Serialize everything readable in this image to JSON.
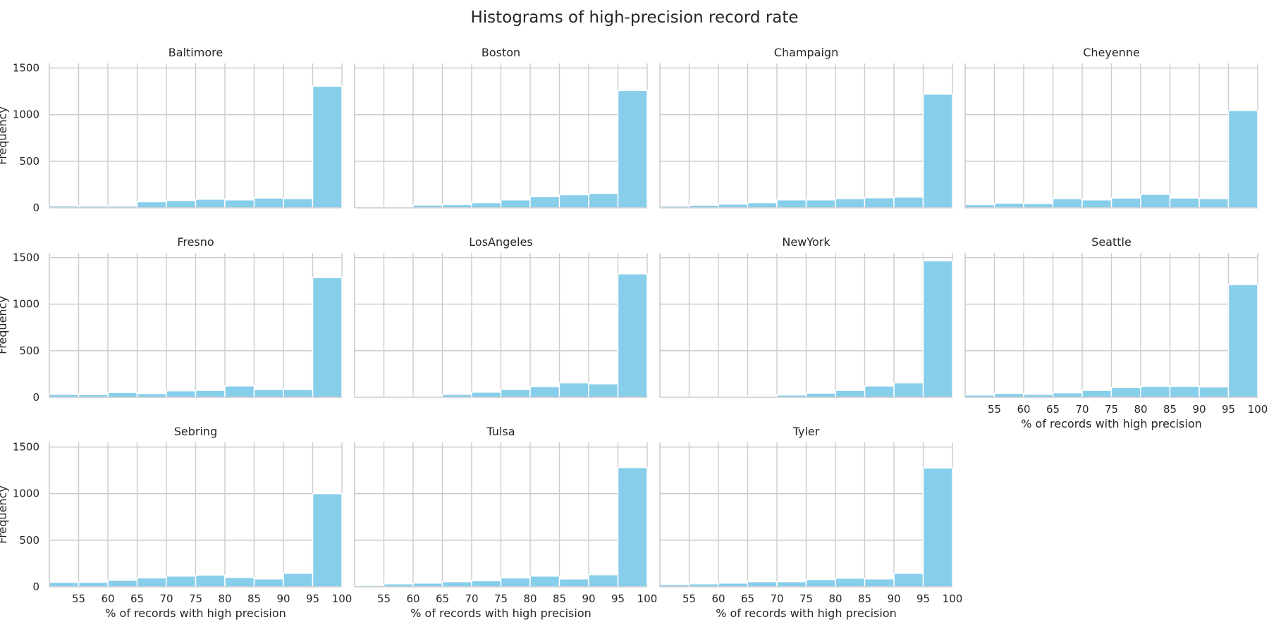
{
  "chart_data": {
    "type": "bar",
    "title": "Histograms of high-precision record rate",
    "xlabel": "% of records with high precision",
    "ylabel": "Frequency",
    "xlim": [
      50,
      100
    ],
    "ylim": [
      0,
      1550
    ],
    "x_ticks": [
      55,
      60,
      65,
      70,
      75,
      80,
      85,
      90,
      95,
      100
    ],
    "y_ticks": [
      0,
      500,
      1000,
      1500
    ],
    "bin_edges": [
      50,
      55,
      60,
      65,
      70,
      75,
      80,
      85,
      90,
      95,
      100
    ],
    "bar_color": "#87ceeb",
    "grid": true,
    "panels": [
      {
        "name": "Baltimore",
        "values": [
          20,
          18,
          18,
          65,
          78,
          92,
          85,
          105,
          98,
          1305
        ]
      },
      {
        "name": "Boston",
        "values": [
          5,
          8,
          30,
          35,
          55,
          85,
          120,
          140,
          155,
          1260
        ]
      },
      {
        "name": "Champaign",
        "values": [
          18,
          28,
          40,
          55,
          85,
          85,
          98,
          108,
          115,
          1220
        ]
      },
      {
        "name": "Cheyenne",
        "values": [
          35,
          50,
          45,
          98,
          85,
          105,
          145,
          105,
          98,
          1045
        ]
      },
      {
        "name": "Fresno",
        "values": [
          32,
          30,
          52,
          40,
          70,
          75,
          122,
          85,
          85,
          1285
        ]
      },
      {
        "name": "LosAngeles",
        "values": [
          3,
          3,
          5,
          32,
          55,
          85,
          115,
          155,
          145,
          1325
        ]
      },
      {
        "name": "NewYork",
        "values": [
          3,
          3,
          5,
          12,
          25,
          45,
          75,
          122,
          155,
          1465
        ]
      },
      {
        "name": "Seattle",
        "values": [
          25,
          42,
          32,
          48,
          75,
          105,
          118,
          118,
          112,
          1210
        ]
      },
      {
        "name": "Sebring",
        "values": [
          48,
          48,
          70,
          95,
          115,
          125,
          100,
          85,
          145,
          1000
        ]
      },
      {
        "name": "Tulsa",
        "values": [
          15,
          32,
          40,
          55,
          65,
          95,
          115,
          85,
          130,
          1280
        ]
      },
      {
        "name": "Tyler",
        "values": [
          25,
          32,
          40,
          55,
          55,
          78,
          92,
          85,
          145,
          1275
        ]
      }
    ]
  }
}
